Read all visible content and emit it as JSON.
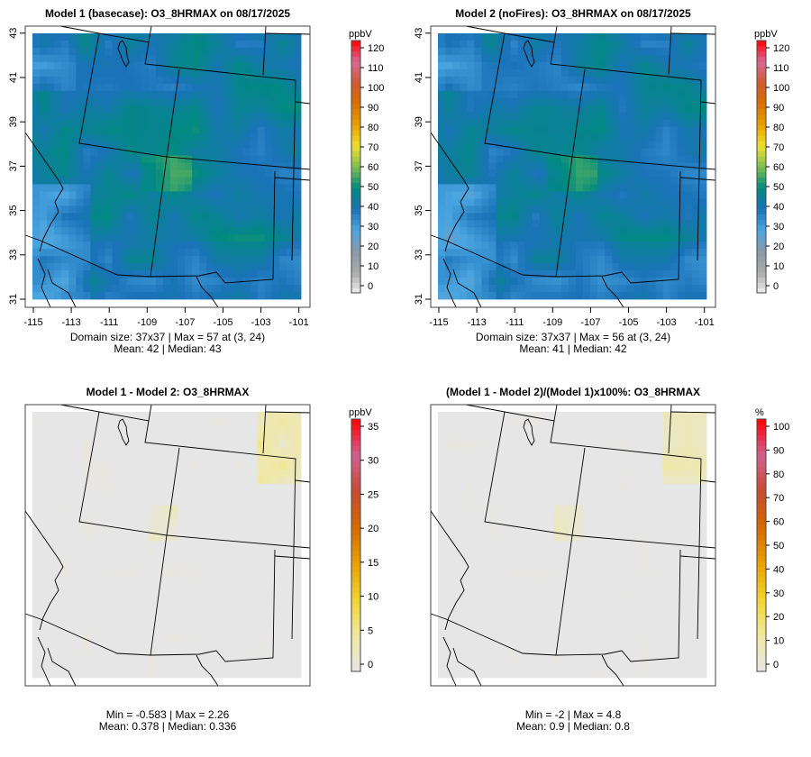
{
  "chart_data": [
    {
      "type": "heatmap",
      "title": "Model 1 (basecase): O3_8HRMAX on 08/17/2025",
      "units": "ppbV",
      "x_ticks": [
        "-115",
        "-113",
        "-111",
        "-109",
        "-107",
        "-105",
        "-103",
        "-101"
      ],
      "y_ticks": [
        "31",
        "33",
        "35",
        "37",
        "39",
        "41",
        "43"
      ],
      "scale_ticks": [
        "0",
        "10",
        "20",
        "30",
        "40",
        "50",
        "60",
        "70",
        "80",
        "90",
        "100",
        "110",
        "120"
      ],
      "scale_range": [
        0,
        120
      ],
      "stats_line1": "Domain size: 37x37 | Max = 57 at (3, 24)",
      "stats_line2": "Mean: 42 |  Median: 43",
      "grid": {
        "nx": 37,
        "ny": 37,
        "mean": 42,
        "max": 57
      }
    },
    {
      "type": "heatmap",
      "title": "Model 2 (noFires): O3_8HRMAX on 08/17/2025",
      "units": "ppbV",
      "x_ticks": [
        "-115",
        "-113",
        "-111",
        "-109",
        "-107",
        "-105",
        "-103",
        "-101"
      ],
      "y_ticks": [
        "31",
        "33",
        "35",
        "37",
        "39",
        "41",
        "43"
      ],
      "scale_ticks": [
        "0",
        "10",
        "20",
        "30",
        "40",
        "50",
        "60",
        "70",
        "80",
        "90",
        "100",
        "110",
        "120"
      ],
      "scale_range": [
        0,
        120
      ],
      "stats_line1": "Domain size: 37x37 | Max = 56 at (3, 24)",
      "stats_line2": "Mean: 41 |  Median: 42",
      "grid": {
        "nx": 37,
        "ny": 37,
        "mean": 41,
        "max": 56
      }
    },
    {
      "type": "heatmap",
      "title": "Model 1 - Model 2: O3_8HRMAX",
      "units": "ppbV",
      "scale_ticks": [
        "0",
        "5",
        "10",
        "15",
        "20",
        "25",
        "30",
        "35"
      ],
      "scale_range": [
        0,
        35
      ],
      "stats_line1": "Min = -0.583 | Max = 2.26",
      "stats_line2": "Mean: 0.378 |  Median: 0.336",
      "grid": {
        "nx": 37,
        "ny": 37,
        "mean": 0.378,
        "max": 2.26
      }
    },
    {
      "type": "heatmap",
      "title": "(Model 1 - Model 2)/(Model 1)x100%: O3_8HRMAX",
      "units": "%",
      "scale_ticks": [
        "0",
        "10",
        "20",
        "30",
        "40",
        "50",
        "60",
        "70",
        "80",
        "90",
        "100"
      ],
      "scale_range": [
        0,
        100
      ],
      "stats_line1": "Min = -2 | Max = 4.8",
      "stats_line2": "Mean: 0.9 |  Median: 0.8",
      "grid": {
        "nx": 37,
        "ny": 37,
        "mean": 0.9,
        "max": 4.8
      }
    }
  ],
  "colors": {
    "conc_scale": [
      "#eeeeee",
      "#aaaaaa",
      "#8899aa",
      "#4aa5e0",
      "#1a73b8",
      "#008a80",
      "#7cc050",
      "#f0e030",
      "#e8a000",
      "#d97000",
      "#d05a30",
      "#d86a98",
      "#ff0000"
    ],
    "diff_scale": [
      "#e6e6e6",
      "#f0e8a0",
      "#f2d530",
      "#eaa000",
      "#d46a00",
      "#c84a30",
      "#d06090",
      "#ff0000"
    ],
    "no_data": "#ffffff"
  }
}
